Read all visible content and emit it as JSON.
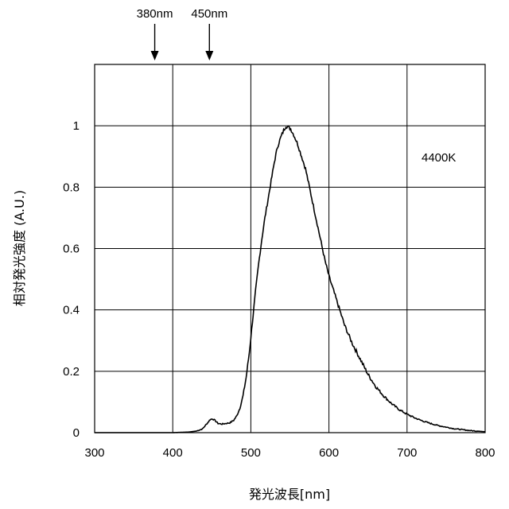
{
  "chart_data": {
    "type": "line",
    "xlabel": "発光波長[nm]",
    "ylabel": "相対発光強度 (A.U.)",
    "xlim": [
      300,
      800
    ],
    "ylim": [
      0,
      1.2
    ],
    "x_ticks": [
      300,
      400,
      500,
      600,
      700,
      800
    ],
    "y_ticks": [
      0,
      0.2,
      0.4,
      0.6,
      0.8,
      1
    ],
    "x_tick_labels": [
      "300",
      "400",
      "500",
      "600",
      "700",
      "800"
    ],
    "y_tick_labels": [
      "0",
      "0.2",
      "0.4",
      "0.6",
      "0.8",
      "1"
    ],
    "grid": true,
    "annotation": "4400K",
    "markers": [
      {
        "x": 380,
        "label": "380nm"
      },
      {
        "x": 450,
        "label": "450nm"
      }
    ],
    "series": [
      {
        "color": "#000000",
        "points": [
          [
            300,
            0
          ],
          [
            400,
            0
          ],
          [
            420,
            0.002
          ],
          [
            430,
            0.005
          ],
          [
            438,
            0.012
          ],
          [
            444,
            0.03
          ],
          [
            448,
            0.043
          ],
          [
            451,
            0.045
          ],
          [
            454,
            0.04
          ],
          [
            458,
            0.03
          ],
          [
            463,
            0.028
          ],
          [
            468,
            0.03
          ],
          [
            473,
            0.032
          ],
          [
            478,
            0.04
          ],
          [
            482,
            0.055
          ],
          [
            486,
            0.08
          ],
          [
            490,
            0.12
          ],
          [
            494,
            0.18
          ],
          [
            498,
            0.26
          ],
          [
            502,
            0.36
          ],
          [
            506,
            0.46
          ],
          [
            510,
            0.55
          ],
          [
            514,
            0.63
          ],
          [
            518,
            0.7
          ],
          [
            522,
            0.76
          ],
          [
            526,
            0.82
          ],
          [
            530,
            0.88
          ],
          [
            534,
            0.93
          ],
          [
            538,
            0.96
          ],
          [
            542,
            0.985
          ],
          [
            545,
            1.0
          ],
          [
            548,
            0.995
          ],
          [
            551,
            0.99
          ],
          [
            555,
            0.97
          ],
          [
            560,
            0.94
          ],
          [
            565,
            0.9
          ],
          [
            570,
            0.86
          ],
          [
            575,
            0.8
          ],
          [
            580,
            0.74
          ],
          [
            585,
            0.68
          ],
          [
            590,
            0.62
          ],
          [
            595,
            0.56
          ],
          [
            600,
            0.51
          ],
          [
            605,
            0.47
          ],
          [
            610,
            0.43
          ],
          [
            615,
            0.39
          ],
          [
            620,
            0.35
          ],
          [
            630,
            0.29
          ],
          [
            640,
            0.24
          ],
          [
            650,
            0.19
          ],
          [
            660,
            0.15
          ],
          [
            670,
            0.12
          ],
          [
            680,
            0.095
          ],
          [
            690,
            0.075
          ],
          [
            700,
            0.06
          ],
          [
            710,
            0.048
          ],
          [
            720,
            0.038
          ],
          [
            730,
            0.03
          ],
          [
            740,
            0.023
          ],
          [
            750,
            0.018
          ],
          [
            760,
            0.013
          ],
          [
            770,
            0.01
          ],
          [
            780,
            0.007
          ],
          [
            790,
            0.005
          ],
          [
            800,
            0.003
          ]
        ]
      }
    ]
  }
}
